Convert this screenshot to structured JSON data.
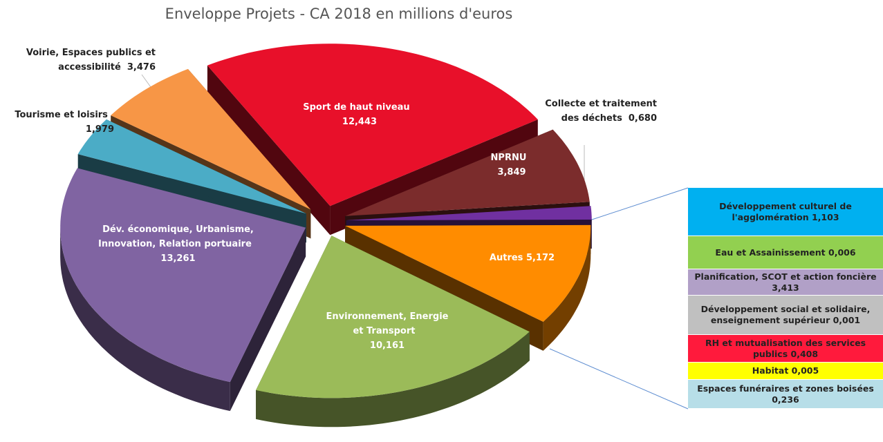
{
  "chart_data": {
    "type": "pie",
    "title": "Enveloppe Projets - CA 2018 en millions d'euros",
    "categories": [
      "Sport de haut niveau",
      "NPRNU",
      "Collecte et traitement des déchets",
      "Autres",
      "Environnement, Energie et Transport",
      "Dév. économique, Urbanisme, Innovation, Relation portuaire",
      "Tourisme et loisirs",
      "Voirie, Espaces publics et accessibilité"
    ],
    "values": [
      12.443,
      3.849,
      0.68,
      5.172,
      10.161,
      13.261,
      1.979,
      3.476
    ],
    "value_labels": [
      "12,443",
      "3,849",
      "0,680",
      "5,172",
      "10,161",
      "13,261",
      "1,979",
      "3,476"
    ],
    "colors": [
      "#e8102a",
      "#7b2c2c",
      "#7030a0",
      "#ff8c00",
      "#9bbb59",
      "#8064a2",
      "#4bacc6",
      "#f79646"
    ],
    "breakdown": {
      "categories": [
        "Développement culturel de l'agglomération",
        "Eau et Assainissement",
        "Planification, SCOT et action foncière",
        "Développement social et solidaire, enseignement supérieur",
        "RH et mutualisation des services publics",
        "Habitat",
        "Espaces funéraires et zones boisées"
      ],
      "values": [
        1.103,
        0.006,
        3.413,
        0.001,
        0.408,
        0.005,
        0.236
      ],
      "value_labels": [
        "1,103",
        "0,006",
        "3,413",
        "0,001",
        "0,408",
        "0,005",
        "0,236"
      ],
      "colors": [
        "#00b0f0",
        "#92d050",
        "#b1a0c7",
        "#c0c0c0",
        "#ff1a3c",
        "#ffff00",
        "#b7dee8"
      ]
    }
  }
}
